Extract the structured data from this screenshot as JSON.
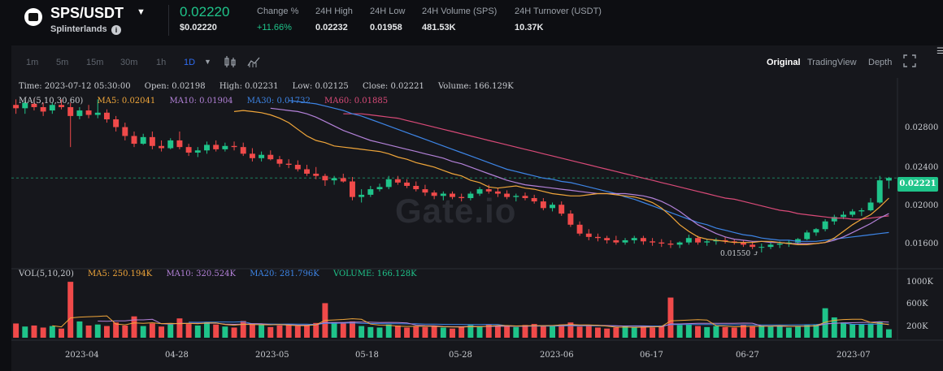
{
  "header": {
    "pair": "SPS/USDT",
    "project": "Splinterlands",
    "price": "0.02220",
    "price_usd": "$0.02220",
    "stats": [
      {
        "label": "Change %",
        "value": "+11.66%"
      },
      {
        "label": "24H High",
        "value": "0.02232"
      },
      {
        "label": "24H Low",
        "value": "0.01958"
      },
      {
        "label": "24H Volume (SPS)",
        "value": "481.53K"
      },
      {
        "label": "24H Turnover (USDT)",
        "value": "10.37K"
      }
    ]
  },
  "toolbar": {
    "timeframes": [
      "1m",
      "5m",
      "15m",
      "30m",
      "1h",
      "1D"
    ],
    "active_timeframe": "1D",
    "views": [
      "Original",
      "TradingView",
      "Depth"
    ],
    "active_view": "Original"
  },
  "legend": {
    "ohlc": {
      "time": "Time: 2023-07-12 05:30:00",
      "open": "Open: 0.02198",
      "high": "High: 0.02231",
      "low": "Low: 0.02125",
      "close": "Close: 0.02221",
      "volume": "Volume: 166.129K"
    },
    "ma_label": "MA(5,10,30,60)",
    "ma5": "MA5: 0.02041",
    "ma10": "MA10: 0.01904",
    "ma30": "MA30: 0.01732",
    "ma60": "MA60: 0.01885",
    "vol_label": "VOL(5,10,20)",
    "vol_ma5": "MA5: 250.194K",
    "vol_ma10": "MA10: 320.524K",
    "vol_ma20": "MA20: 281.796K",
    "vol_value": "VOLUME: 166.128K"
  },
  "price_axis": [
    "0.02800",
    "0.02400",
    "0.02000",
    "0.01600"
  ],
  "current_price_tag": "0.02221",
  "low_marker": "0.01550",
  "volume_axis": [
    "1000K",
    "600K",
    "200K"
  ],
  "date_axis": [
    "2023-04",
    "04-28",
    "2023-05",
    "05-18",
    "05-28",
    "2023-06",
    "06-17",
    "06-27",
    "2023-07"
  ],
  "watermark": "Gate.io",
  "colors": {
    "up": "#1fc48a",
    "down": "#f04a4a",
    "ma5": "#f0a63a",
    "ma10": "#b381d8",
    "ma30": "#3d85e6",
    "ma60": "#d94a78"
  },
  "chart_data": {
    "type": "candlestick",
    "ylim": [
      0.0144,
      0.0305
    ],
    "volume_ylim": [
      0,
      1150
    ],
    "candles": [
      [
        0.0288,
        0.0293,
        0.028,
        0.0285,
        280
      ],
      [
        0.0285,
        0.0292,
        0.028,
        0.029,
        220
      ],
      [
        0.0289,
        0.0294,
        0.0283,
        0.0286,
        240
      ],
      [
        0.0286,
        0.029,
        0.0278,
        0.0282,
        200
      ],
      [
        0.0283,
        0.029,
        0.028,
        0.0288,
        230
      ],
      [
        0.0288,
        0.0293,
        0.0284,
        0.0286,
        180
      ],
      [
        0.0286,
        0.029,
        0.025,
        0.0278,
        1100
      ],
      [
        0.0278,
        0.0286,
        0.0275,
        0.0283,
        320
      ],
      [
        0.0283,
        0.0288,
        0.0276,
        0.0279,
        240
      ],
      [
        0.0279,
        0.0293,
        0.0276,
        0.0281,
        260
      ],
      [
        0.0281,
        0.0284,
        0.0272,
        0.0275,
        230
      ],
      [
        0.0275,
        0.0278,
        0.0264,
        0.0268,
        300
      ],
      [
        0.0268,
        0.0272,
        0.0256,
        0.026,
        240
      ],
      [
        0.026,
        0.0264,
        0.025,
        0.0253,
        420
      ],
      [
        0.0253,
        0.0262,
        0.0252,
        0.0259,
        230
      ],
      [
        0.0259,
        0.0264,
        0.0248,
        0.0251,
        280
      ],
      [
        0.0251,
        0.0256,
        0.0246,
        0.0249,
        220
      ],
      [
        0.0249,
        0.0258,
        0.0248,
        0.0256,
        260
      ],
      [
        0.0256,
        0.0264,
        0.0248,
        0.025,
        380
      ],
      [
        0.025,
        0.0253,
        0.0242,
        0.0245,
        270
      ],
      [
        0.0245,
        0.025,
        0.0241,
        0.0247,
        240
      ],
      [
        0.0247,
        0.0255,
        0.0244,
        0.0252,
        310
      ],
      [
        0.0252,
        0.0256,
        0.0246,
        0.0248,
        260
      ],
      [
        0.0248,
        0.0254,
        0.0246,
        0.0251,
        220
      ],
      [
        0.0251,
        0.0255,
        0.0247,
        0.025,
        200
      ],
      [
        0.025,
        0.0254,
        0.0242,
        0.0244,
        330
      ],
      [
        0.0244,
        0.0249,
        0.0237,
        0.024,
        280
      ],
      [
        0.024,
        0.0246,
        0.0237,
        0.0243,
        250
      ],
      [
        0.0243,
        0.0247,
        0.0238,
        0.0239,
        210
      ],
      [
        0.0239,
        0.0242,
        0.0232,
        0.0235,
        240
      ],
      [
        0.0235,
        0.0239,
        0.0231,
        0.0234,
        260
      ],
      [
        0.0234,
        0.0238,
        0.0228,
        0.023,
        230
      ],
      [
        0.023,
        0.0234,
        0.0224,
        0.0226,
        250
      ],
      [
        0.0226,
        0.0232,
        0.0221,
        0.0224,
        290
      ],
      [
        0.0224,
        0.0226,
        0.0215,
        0.022,
        680
      ],
      [
        0.022,
        0.0224,
        0.0216,
        0.0222,
        300
      ],
      [
        0.0222,
        0.0226,
        0.0218,
        0.0219,
        280
      ],
      [
        0.0219,
        0.0223,
        0.0202,
        0.0205,
        320
      ],
      [
        0.0205,
        0.0212,
        0.02,
        0.0207,
        230
      ],
      [
        0.0207,
        0.0215,
        0.0205,
        0.0212,
        210
      ],
      [
        0.0212,
        0.0217,
        0.021,
        0.0214,
        200
      ],
      [
        0.0214,
        0.0224,
        0.0212,
        0.0221,
        260
      ],
      [
        0.0221,
        0.0224,
        0.0216,
        0.0218,
        240
      ],
      [
        0.0218,
        0.0221,
        0.0213,
        0.0215,
        200
      ],
      [
        0.0215,
        0.0219,
        0.021,
        0.0212,
        230
      ],
      [
        0.0212,
        0.0216,
        0.0206,
        0.0209,
        210
      ],
      [
        0.0209,
        0.0211,
        0.0203,
        0.0206,
        240
      ],
      [
        0.0206,
        0.021,
        0.0202,
        0.0208,
        200
      ],
      [
        0.0208,
        0.021,
        0.0203,
        0.0205,
        180
      ],
      [
        0.0205,
        0.0208,
        0.0201,
        0.0204,
        220
      ],
      [
        0.0204,
        0.021,
        0.0202,
        0.0208,
        250
      ],
      [
        0.0208,
        0.0214,
        0.0206,
        0.0212,
        230
      ],
      [
        0.0212,
        0.0216,
        0.0208,
        0.021,
        260
      ],
      [
        0.021,
        0.0213,
        0.0205,
        0.0208,
        240
      ],
      [
        0.0208,
        0.0211,
        0.0203,
        0.0205,
        220
      ],
      [
        0.0205,
        0.0208,
        0.0201,
        0.0206,
        210
      ],
      [
        0.0206,
        0.0209,
        0.0202,
        0.0204,
        250
      ],
      [
        0.0204,
        0.0207,
        0.0199,
        0.0201,
        270
      ],
      [
        0.0201,
        0.0204,
        0.0193,
        0.0195,
        230
      ],
      [
        0.0195,
        0.02,
        0.0192,
        0.0198,
        240
      ],
      [
        0.0198,
        0.0201,
        0.0188,
        0.019,
        260
      ],
      [
        0.019,
        0.0193,
        0.0178,
        0.018,
        300
      ],
      [
        0.018,
        0.0183,
        0.017,
        0.0172,
        220
      ],
      [
        0.0172,
        0.0176,
        0.0166,
        0.0169,
        240
      ],
      [
        0.0169,
        0.0172,
        0.0165,
        0.0168,
        200
      ],
      [
        0.0168,
        0.017,
        0.0163,
        0.0166,
        180
      ],
      [
        0.0166,
        0.017,
        0.0162,
        0.0164,
        200
      ],
      [
        0.0164,
        0.0168,
        0.0162,
        0.0166,
        230
      ],
      [
        0.0166,
        0.017,
        0.0163,
        0.0168,
        210
      ],
      [
        0.0168,
        0.017,
        0.0162,
        0.0165,
        220
      ],
      [
        0.0165,
        0.0168,
        0.0161,
        0.0164,
        200
      ],
      [
        0.0164,
        0.0167,
        0.016,
        0.0163,
        240
      ],
      [
        0.0163,
        0.0166,
        0.0159,
        0.0162,
        790
      ],
      [
        0.0162,
        0.0165,
        0.0159,
        0.0164,
        250
      ],
      [
        0.0164,
        0.0171,
        0.0162,
        0.0168,
        260
      ],
      [
        0.0168,
        0.017,
        0.0162,
        0.0164,
        230
      ],
      [
        0.0164,
        0.0167,
        0.0161,
        0.0165,
        210
      ],
      [
        0.0165,
        0.0168,
        0.0162,
        0.0166,
        230
      ],
      [
        0.0166,
        0.0169,
        0.0163,
        0.0165,
        210
      ],
      [
        0.0165,
        0.0167,
        0.0162,
        0.0164,
        200
      ],
      [
        0.0164,
        0.0166,
        0.016,
        0.0162,
        250
      ],
      [
        0.0162,
        0.0165,
        0.0158,
        0.016,
        230
      ],
      [
        0.016,
        0.0163,
        0.0155,
        0.016,
        240
      ],
      [
        0.016,
        0.0164,
        0.0158,
        0.0162,
        220
      ],
      [
        0.0162,
        0.0165,
        0.0159,
        0.0163,
        240
      ],
      [
        0.0163,
        0.0166,
        0.016,
        0.0164,
        200
      ],
      [
        0.0164,
        0.0168,
        0.0162,
        0.0167,
        230
      ],
      [
        0.0167,
        0.0175,
        0.0166,
        0.0173,
        250
      ],
      [
        0.0173,
        0.0177,
        0.017,
        0.0176,
        260
      ],
      [
        0.0176,
        0.0185,
        0.0174,
        0.0183,
        580
      ],
      [
        0.0183,
        0.0189,
        0.018,
        0.0187,
        400
      ],
      [
        0.0187,
        0.0192,
        0.0185,
        0.0189,
        300
      ],
      [
        0.0189,
        0.0194,
        0.0187,
        0.0192,
        270
      ],
      [
        0.0192,
        0.0195,
        0.0188,
        0.0193,
        260
      ],
      [
        0.0193,
        0.0204,
        0.0192,
        0.02,
        280
      ],
      [
        0.02,
        0.0224,
        0.0199,
        0.022,
        310
      ],
      [
        0.02198,
        0.02231,
        0.02125,
        0.02221,
        166
      ]
    ],
    "ma5": [
      0.0282,
      0.0283,
      0.0282,
      0.0281,
      0.0279,
      0.0276,
      0.0272,
      0.0266,
      0.026,
      0.0256,
      0.0254,
      0.0251,
      0.025,
      0.0249,
      0.0248,
      0.0247,
      0.0246,
      0.0244,
      0.0241,
      0.0239,
      0.0236,
      0.0234,
      0.0232,
      0.0229,
      0.0226,
      0.0224,
      0.022,
      0.0218,
      0.0214,
      0.0213,
      0.0214,
      0.0215,
      0.0213,
      0.0212,
      0.021,
      0.0208,
      0.0207,
      0.0206,
      0.0206,
      0.0207,
      0.0208,
      0.0208,
      0.0207,
      0.0206,
      0.0205,
      0.0203,
      0.02,
      0.0195,
      0.0188,
      0.018,
      0.0174,
      0.0169,
      0.0167,
      0.0166,
      0.0165,
      0.0164,
      0.0164,
      0.0164,
      0.0165,
      0.0165,
      0.0164,
      0.0163,
      0.0162,
      0.0162,
      0.0163,
      0.0164,
      0.0168,
      0.0174,
      0.018,
      0.0185,
      0.0189,
      0.0196,
      0.0204
    ],
    "ma10": [
      0.0285,
      0.0284,
      0.0283,
      0.0282,
      0.028,
      0.0277,
      0.0273,
      0.0269,
      0.0265,
      0.0262,
      0.0259,
      0.0256,
      0.0254,
      0.0252,
      0.025,
      0.0248,
      0.0246,
      0.0244,
      0.0242,
      0.024,
      0.0237,
      0.0235,
      0.0232,
      0.0229,
      0.0226,
      0.0223,
      0.022,
      0.0218,
      0.0216,
      0.0215,
      0.0214,
      0.0213,
      0.0212,
      0.0211,
      0.021,
      0.0209,
      0.0208,
      0.0208,
      0.0208,
      0.0208,
      0.0207,
      0.0206,
      0.0204,
      0.0201,
      0.0197,
      0.0192,
      0.0186,
      0.018,
      0.0176,
      0.0172,
      0.0169,
      0.0167,
      0.0166,
      0.0165,
      0.0165,
      0.0164,
      0.0164,
      0.0163,
      0.0163,
      0.0163,
      0.0163,
      0.0164,
      0.0166,
      0.0169,
      0.0173,
      0.0177,
      0.0181,
      0.0186,
      0.019
    ],
    "ma30": [
      0.0292,
      0.0291,
      0.029,
      0.0289,
      0.0287,
      0.0285,
      0.0283,
      0.028,
      0.0278,
      0.0275,
      0.0272,
      0.0269,
      0.0266,
      0.0263,
      0.026,
      0.0257,
      0.0254,
      0.0251,
      0.0248,
      0.0245,
      0.0242,
      0.0239,
      0.0236,
      0.0233,
      0.023,
      0.0228,
      0.0226,
      0.0224,
      0.0222,
      0.0221,
      0.0219,
      0.0218,
      0.0216,
      0.0214,
      0.0212,
      0.021,
      0.0208,
      0.0205,
      0.0203,
      0.02,
      0.0197,
      0.0194,
      0.0191,
      0.0188,
      0.0185,
      0.0182,
      0.018,
      0.0177,
      0.0175,
      0.0173,
      0.0171,
      0.017,
      0.0168,
      0.0167,
      0.0166,
      0.0166,
      0.0165,
      0.0165,
      0.0165,
      0.0166,
      0.0167,
      0.0168,
      0.0169,
      0.017,
      0.0171,
      0.0172,
      0.0173
    ],
    "ma60": [
      0.028,
      0.028,
      0.028,
      0.0279,
      0.0278,
      0.0277,
      0.0276,
      0.0274,
      0.0272,
      0.027,
      0.0268,
      0.0266,
      0.0264,
      0.0262,
      0.026,
      0.0258,
      0.0256,
      0.0254,
      0.0252,
      0.025,
      0.0248,
      0.0246,
      0.0244,
      0.0242,
      0.024,
      0.0238,
      0.0236,
      0.0234,
      0.0232,
      0.023,
      0.0228,
      0.0226,
      0.0224,
      0.0222,
      0.022,
      0.0218,
      0.0216,
      0.0214,
      0.0212,
      0.021,
      0.0208,
      0.0206,
      0.0204,
      0.0203,
      0.0201,
      0.0199,
      0.0197,
      0.0195,
      0.0193,
      0.0192,
      0.019,
      0.0189,
      0.0188,
      0.0187,
      0.0186,
      0.0186,
      0.0185,
      0.0185,
      0.0186,
      0.0187,
      0.0188
    ]
  }
}
